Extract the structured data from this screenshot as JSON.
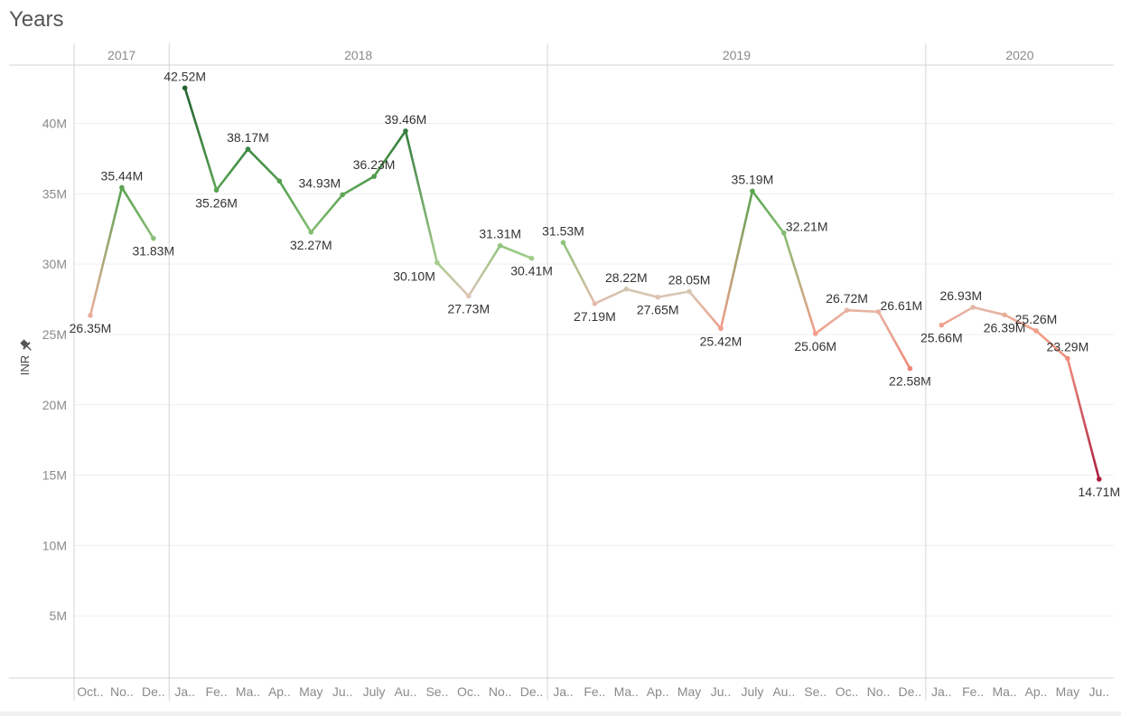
{
  "header": {
    "title": "Years"
  },
  "colors": {
    "high": "#1f5e2c",
    "mid": "#dcc6b8",
    "low": "#a4153a",
    "grid": "#efefef",
    "divider": "#d4d4d4",
    "text": "#333333",
    "axis_text": "#8a8a8a"
  },
  "chart_data": {
    "type": "line",
    "title": "Years",
    "ylabel": "INR",
    "ylim": [
      0,
      45000000
    ],
    "yticks": [
      5000000,
      10000000,
      15000000,
      20000000,
      25000000,
      30000000,
      35000000,
      40000000
    ],
    "ytick_labels": [
      "5M",
      "10M",
      "15M",
      "20M",
      "25M",
      "30M",
      "35M",
      "40M"
    ],
    "grid": true,
    "panels": [
      {
        "year": "2017",
        "months": [
          "Oct..",
          "No..",
          "De.."
        ],
        "values": [
          26350000,
          35440000,
          31830000
        ],
        "labels": [
          "26.35M",
          "35.44M",
          "31.83M"
        ]
      },
      {
        "year": "2018",
        "months": [
          "Ja..",
          "Fe..",
          "Ma..",
          "Ap..",
          "May",
          "Ju..",
          "July",
          "Au..",
          "Se..",
          "Oc..",
          "No..",
          "De.."
        ],
        "values": [
          42520000,
          35260000,
          38170000,
          35900000,
          32270000,
          34930000,
          36230000,
          39460000,
          30100000,
          27730000,
          31310000,
          30410000
        ],
        "labels": [
          "42.52M",
          "35.26M",
          "38.17M",
          "",
          "32.27M",
          "34.93M",
          "36.23M",
          "39.46M",
          "30.10M",
          "27.73M",
          "31.31M",
          "30.41M"
        ]
      },
      {
        "year": "2019",
        "months": [
          "Ja..",
          "Fe..",
          "Ma..",
          "Ap..",
          "May",
          "Ju..",
          "July",
          "Au..",
          "Se..",
          "Oc..",
          "No..",
          "De.."
        ],
        "values": [
          31530000,
          27190000,
          28220000,
          27650000,
          28050000,
          25420000,
          35190000,
          32210000,
          25060000,
          26720000,
          26610000,
          22580000
        ],
        "labels": [
          "31.53M",
          "27.19M",
          "28.22M",
          "27.65M",
          "28.05M",
          "25.42M",
          "35.19M",
          "32.21M",
          "25.06M",
          "26.72M",
          "26.61M",
          "22.58M"
        ]
      },
      {
        "year": "2020",
        "months": [
          "Ja..",
          "Fe..",
          "Ma..",
          "Ap..",
          "May",
          "Ju.."
        ],
        "values": [
          25660000,
          26930000,
          26390000,
          25260000,
          23290000,
          14710000
        ],
        "labels": [
          "25.66M",
          "26.93M",
          "26.39M",
          "25.26M",
          "23.29M",
          "14.71M"
        ]
      }
    ]
  }
}
